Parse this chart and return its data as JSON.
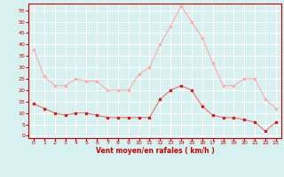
{
  "hours": [
    0,
    1,
    2,
    3,
    4,
    5,
    6,
    7,
    8,
    9,
    10,
    11,
    12,
    13,
    14,
    15,
    16,
    17,
    18,
    19,
    20,
    21,
    22,
    23
  ],
  "wind_avg": [
    14,
    12,
    10,
    9,
    10,
    10,
    9,
    8,
    8,
    8,
    8,
    8,
    16,
    20,
    22,
    20,
    13,
    9,
    8,
    8,
    7,
    6,
    2,
    6
  ],
  "wind_gust": [
    38,
    26,
    22,
    22,
    25,
    24,
    24,
    20,
    20,
    20,
    27,
    30,
    40,
    48,
    57,
    50,
    43,
    32,
    22,
    22,
    25,
    25,
    16,
    12
  ],
  "bg_color": "#d7f0f0",
  "grid_color": "#ffffff",
  "line_avg_color": "#e87070",
  "line_gust_color": "#ffaaaa",
  "marker_avg_color": "#cc2020",
  "marker_gust_color": "#ffaaaa",
  "xlabel": "Vent moyen/en rafales ( km/h )",
  "xlabel_color": "#cc0000",
  "tick_color": "#cc0000",
  "yticks": [
    0,
    5,
    10,
    15,
    20,
    25,
    30,
    35,
    40,
    45,
    50,
    55
  ],
  "ylim": [
    -1,
    58
  ],
  "xlim": [
    -0.5,
    23.5
  ],
  "figsize": [
    3.2,
    2.0
  ],
  "dpi": 100
}
